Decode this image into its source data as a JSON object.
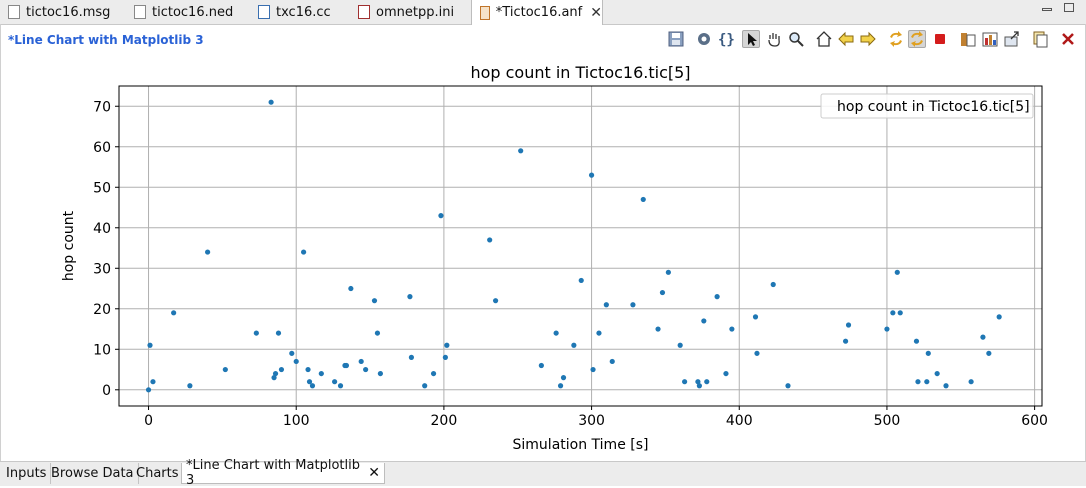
{
  "tabs": [
    {
      "label": "tictoc16.msg",
      "icon": "msg-file-icon"
    },
    {
      "label": "tictoc16.ned",
      "icon": "ned-file-icon"
    },
    {
      "label": "txc16.cc",
      "icon": "cpp-file-icon"
    },
    {
      "label": "omnetpp.ini",
      "icon": "ini-file-icon"
    },
    {
      "label": "*Tictoc16.anf",
      "icon": "anf-file-icon"
    }
  ],
  "editor": {
    "title": "*Line Chart with Matplotlib 3"
  },
  "toolbar": {
    "icons": [
      "save-icon",
      "settings-icon",
      "braces-icon",
      "pointer-icon",
      "pan-hand-icon",
      "zoom-icon",
      "home-icon",
      "back-icon",
      "forward-icon",
      "refresh-icon",
      "auto-refresh-icon",
      "stop-icon",
      "export-chart-icon",
      "export-data-icon",
      "export-image-icon",
      "copy-icon",
      "close-chart-icon"
    ]
  },
  "bottom_tabs": [
    {
      "label": "Inputs"
    },
    {
      "label": "Browse Data"
    },
    {
      "label": "Charts"
    },
    {
      "label": "*Line Chart with Matplotlib 3"
    }
  ],
  "colors": {
    "accent": "#2a62d6",
    "series": "#1f77b4",
    "grid": "#b0b0b0"
  },
  "chart_data": {
    "type": "scatter",
    "title": "hop count in Tictoc16.tic[5]",
    "xlabel": "Simulation Time [s]",
    "ylabel": "hop count",
    "xlim": [
      -20,
      605
    ],
    "ylim": [
      -4,
      75
    ],
    "xticks": [
      0,
      100,
      200,
      300,
      400,
      500,
      600
    ],
    "yticks": [
      0,
      10,
      20,
      30,
      40,
      50,
      60,
      70
    ],
    "grid": true,
    "legend_position": "top-right",
    "series": [
      {
        "name": "hop count in Tictoc16.tic[5]",
        "color": "#1f77b4",
        "points": [
          [
            0,
            0
          ],
          [
            1,
            11
          ],
          [
            3,
            2
          ],
          [
            17,
            19
          ],
          [
            28,
            1
          ],
          [
            40,
            34
          ],
          [
            52,
            5
          ],
          [
            73,
            14
          ],
          [
            83,
            71
          ],
          [
            85,
            3
          ],
          [
            86,
            4
          ],
          [
            88,
            14
          ],
          [
            90,
            5
          ],
          [
            97,
            9
          ],
          [
            100,
            7
          ],
          [
            105,
            34
          ],
          [
            108,
            5
          ],
          [
            109,
            2
          ],
          [
            111,
            1
          ],
          [
            117,
            4
          ],
          [
            126,
            2
          ],
          [
            130,
            1
          ],
          [
            133,
            6
          ],
          [
            134,
            6
          ],
          [
            137,
            25
          ],
          [
            144,
            7
          ],
          [
            147,
            5
          ],
          [
            153,
            22
          ],
          [
            155,
            14
          ],
          [
            157,
            4
          ],
          [
            177,
            23
          ],
          [
            178,
            8
          ],
          [
            187,
            1
          ],
          [
            193,
            4
          ],
          [
            198,
            43
          ],
          [
            201,
            8
          ],
          [
            202,
            11
          ],
          [
            231,
            37
          ],
          [
            235,
            22
          ],
          [
            252,
            59
          ],
          [
            266,
            6
          ],
          [
            276,
            14
          ],
          [
            279,
            1
          ],
          [
            281,
            3
          ],
          [
            288,
            11
          ],
          [
            293,
            27
          ],
          [
            300,
            53
          ],
          [
            301,
            5
          ],
          [
            305,
            14
          ],
          [
            310,
            21
          ],
          [
            314,
            7
          ],
          [
            328,
            21
          ],
          [
            335,
            47
          ],
          [
            345,
            15
          ],
          [
            348,
            24
          ],
          [
            352,
            29
          ],
          [
            360,
            11
          ],
          [
            363,
            2
          ],
          [
            372,
            2
          ],
          [
            373,
            1
          ],
          [
            376,
            17
          ],
          [
            378,
            2
          ],
          [
            385,
            23
          ],
          [
            391,
            4
          ],
          [
            395,
            15
          ],
          [
            411,
            18
          ],
          [
            412,
            9
          ],
          [
            423,
            26
          ],
          [
            433,
            1
          ],
          [
            472,
            12
          ],
          [
            474,
            16
          ],
          [
            500,
            15
          ],
          [
            504,
            19
          ],
          [
            507,
            29
          ],
          [
            509,
            19
          ],
          [
            520,
            12
          ],
          [
            521,
            2
          ],
          [
            527,
            2
          ],
          [
            528,
            9
          ],
          [
            534,
            4
          ],
          [
            540,
            1
          ],
          [
            557,
            2
          ],
          [
            565,
            13
          ],
          [
            569,
            9
          ],
          [
            576,
            18
          ]
        ]
      }
    ]
  }
}
